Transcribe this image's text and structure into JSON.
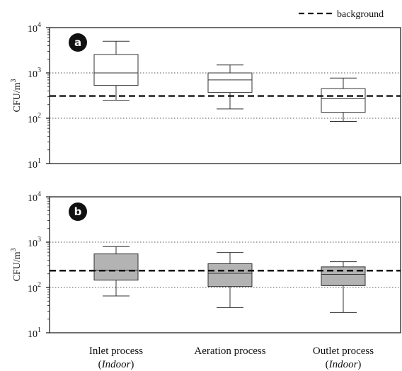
{
  "legend": {
    "background_label": "background"
  },
  "chart_data": [
    {
      "type": "box",
      "panel_label": "a",
      "ylabel": "CFU/m3",
      "yscale": "log",
      "ylim": [
        10,
        10000
      ],
      "yticks": [
        {
          "value": 10,
          "base": "10",
          "exp": "1"
        },
        {
          "value": 100,
          "base": "10",
          "exp": "2"
        },
        {
          "value": 1000,
          "base": "10",
          "exp": "3"
        },
        {
          "value": 10000,
          "base": "10",
          "exp": "4"
        }
      ],
      "grid_lines": [
        100,
        1000
      ],
      "background_level": 310,
      "box_fill": "#ffffff",
      "boxes": [
        {
          "category": "Inlet process",
          "min": 250,
          "q1": 530,
          "median": 1000,
          "q3": 2550,
          "max": 5000
        },
        {
          "category": "Aeration process",
          "min": 160,
          "q1": 370,
          "median": 700,
          "q3": 1000,
          "max": 1500
        },
        {
          "category": "Outlet process",
          "min": 85,
          "q1": 135,
          "median": 270,
          "q3": 450,
          "max": 770
        }
      ]
    },
    {
      "type": "box",
      "panel_label": "b",
      "ylabel": "CFU/m3",
      "yscale": "log",
      "ylim": [
        10,
        10000
      ],
      "yticks": [
        {
          "value": 10,
          "base": "10",
          "exp": "1"
        },
        {
          "value": 100,
          "base": "10",
          "exp": "2"
        },
        {
          "value": 1000,
          "base": "10",
          "exp": "3"
        },
        {
          "value": 10000,
          "base": "10",
          "exp": "4"
        }
      ],
      "grid_lines": [
        100,
        1000
      ],
      "background_level": 235,
      "box_fill": "#b3b3b3",
      "boxes": [
        {
          "category": "Inlet process",
          "min": 65,
          "q1": 145,
          "median": 240,
          "q3": 550,
          "max": 800
        },
        {
          "category": "Aeration process",
          "min": 36,
          "q1": 105,
          "median": 205,
          "q3": 335,
          "max": 590
        },
        {
          "category": "Outlet process",
          "min": 28,
          "q1": 110,
          "median": 195,
          "q3": 285,
          "max": 370
        }
      ]
    }
  ],
  "categories": [
    {
      "line1": "Inlet process",
      "line2": "Indoor",
      "paren_open": "(",
      "paren_close": ")"
    },
    {
      "line1": "Aeration process",
      "line2": "",
      "paren_open": "",
      "paren_close": ""
    },
    {
      "line1": "Outlet process",
      "line2": "Indoor",
      "paren_open": "(",
      "paren_close": ")"
    }
  ]
}
